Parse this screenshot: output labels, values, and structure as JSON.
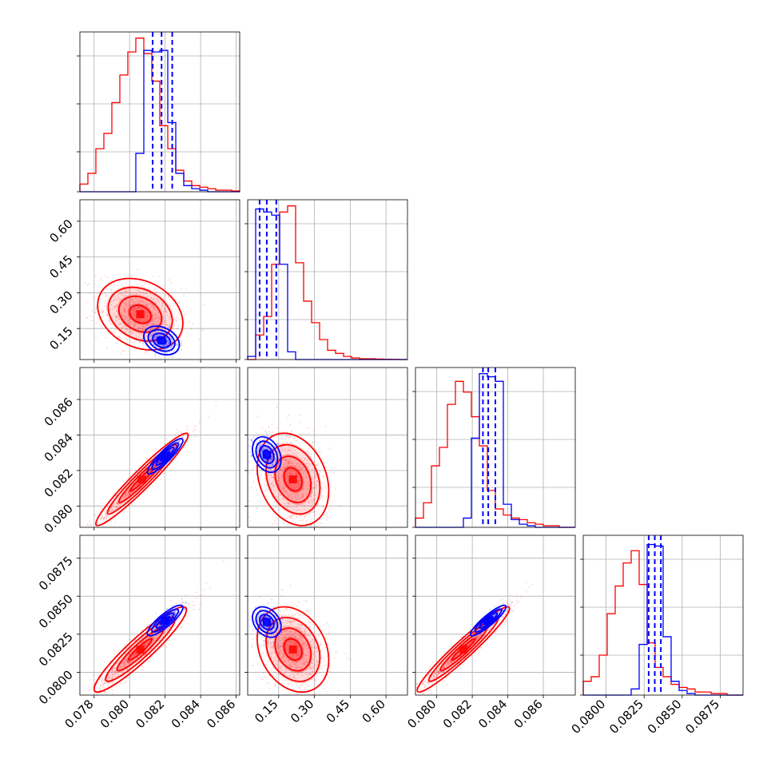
{
  "chart_data": {
    "type": "corner",
    "description_series": [
      {
        "name": "red",
        "color": "#ff0000"
      },
      {
        "name": "blue",
        "color": "#0000ff"
      }
    ],
    "params": [
      {
        "id": "p1",
        "range": [
          0.0772,
          0.0862
        ],
        "ticks": [
          "0.078",
          "0.080",
          "0.082",
          "0.084",
          "0.086"
        ],
        "tick_values": [
          0.078,
          0.08,
          0.082,
          0.084,
          0.086
        ]
      },
      {
        "id": "p2",
        "range": [
          0.02,
          0.69
        ],
        "ticks": [
          "0.15",
          "0.30",
          "0.45",
          "0.60"
        ],
        "tick_values": [
          0.15,
          0.3,
          0.45,
          0.6
        ]
      },
      {
        "id": "p3",
        "range": [
          0.0788,
          0.0878
        ],
        "ticks": [
          "0.080",
          "0.082",
          "0.084",
          "0.086"
        ],
        "tick_values": [
          0.08,
          0.082,
          0.084,
          0.086
        ]
      },
      {
        "id": "p4",
        "range": [
          0.0785,
          0.089
        ],
        "ticks": [
          "0.0800",
          "0.0825",
          "0.0850",
          "0.0875"
        ],
        "tick_values": [
          0.08,
          0.0825,
          0.085,
          0.0875
        ]
      }
    ],
    "histograms": [
      {
        "param": 0,
        "red": [
          0.05,
          0.12,
          0.28,
          0.38,
          0.58,
          0.76,
          0.91,
          1.0,
          0.9,
          0.72,
          0.43,
          0.28,
          0.14,
          0.07,
          0.04,
          0.03,
          0.02,
          0.01,
          0.01,
          0.005
        ],
        "blue": [
          0,
          0,
          0,
          0,
          0,
          0,
          0,
          0.25,
          0.92,
          0.91,
          0.92,
          0.45,
          0.12,
          0.04,
          0.02,
          0.01,
          0,
          0,
          0,
          0
        ],
        "blue_quantiles": [
          0.0813,
          0.0818,
          0.0824
        ]
      },
      {
        "param": 1,
        "red": [
          0.0,
          0.16,
          0.28,
          0.62,
          0.96,
          1.0,
          0.63,
          0.38,
          0.24,
          0.13,
          0.06,
          0.04,
          0.02,
          0.01,
          0.005,
          0.005,
          0.003,
          0.002,
          0.001,
          0.0
        ],
        "blue": [
          0.02,
          0.98,
          0.96,
          0.94,
          0.62,
          0.05,
          0,
          0,
          0,
          0,
          0,
          0,
          0,
          0,
          0,
          0,
          0,
          0,
          0,
          0
        ],
        "blue_quantiles": [
          0.07,
          0.1,
          0.14
        ]
      },
      {
        "param": 2,
        "red": [
          0.06,
          0.16,
          0.4,
          0.52,
          0.8,
          0.95,
          0.88,
          0.72,
          0.53,
          0.24,
          0.12,
          0.08,
          0.06,
          0.05,
          0.03,
          0.02,
          0.01,
          0.01,
          0.0,
          0.0
        ],
        "blue": [
          0,
          0,
          0,
          0,
          0,
          0,
          0.06,
          0.58,
          1.0,
          0.98,
          0.95,
          0.15,
          0.05,
          0.02,
          0.01,
          0,
          0,
          0,
          0,
          0
        ],
        "blue_quantiles": [
          0.0826,
          0.0829,
          0.0833
        ]
      },
      {
        "param": 3,
        "red": [
          0.09,
          0.12,
          0.26,
          0.53,
          0.71,
          0.86,
          0.94,
          0.72,
          0.34,
          0.18,
          0.12,
          0.07,
          0.05,
          0.04,
          0.02,
          0.02,
          0.01,
          0.01,
          0.0,
          0.0
        ],
        "blue": [
          0,
          0,
          0,
          0,
          0,
          0,
          0.04,
          0.33,
          0.98,
          0.97,
          0.38,
          0.09,
          0.03,
          0.01,
          0,
          0,
          0,
          0,
          0,
          0
        ],
        "blue_quantiles": [
          0.0828,
          0.0832,
          0.0836
        ]
      }
    ],
    "pairs": [
      {
        "x": 0,
        "y": 1,
        "red": {
          "mean": [
            0.0806,
            0.21
          ],
          "sd": [
            0.0012,
            0.075
          ],
          "rho": -0.25
        },
        "blue": {
          "mean": [
            0.0818,
            0.1
          ],
          "sd": [
            0.0005,
            0.03
          ],
          "rho": -0.3
        }
      },
      {
        "x": 0,
        "y": 2,
        "red": {
          "mean": [
            0.0807,
            0.0815
          ],
          "sd": [
            0.0013,
            0.0013
          ],
          "rho": 0.96
        },
        "blue": {
          "mean": [
            0.082,
            0.0828
          ],
          "sd": [
            0.0005,
            0.0005
          ],
          "rho": 0.9
        }
      },
      {
        "x": 0,
        "y": 3,
        "red": {
          "mean": [
            0.0806,
            0.0815
          ],
          "sd": [
            0.0013,
            0.0014
          ],
          "rho": 0.93
        },
        "blue": {
          "mean": [
            0.082,
            0.0834
          ],
          "sd": [
            0.0005,
            0.0005
          ],
          "rho": 0.85
        }
      },
      {
        "x": 1,
        "y": 2,
        "red": {
          "mean": [
            0.21,
            0.0815
          ],
          "sd": [
            0.075,
            0.0013
          ],
          "rho": -0.25
        },
        "blue": {
          "mean": [
            0.1,
            0.0829
          ],
          "sd": [
            0.03,
            0.0005
          ],
          "rho": -0.3
        }
      },
      {
        "x": 1,
        "y": 3,
        "red": {
          "mean": [
            0.21,
            0.0815
          ],
          "sd": [
            0.075,
            0.0014
          ],
          "rho": -0.25
        },
        "blue": {
          "mean": [
            0.1,
            0.0833
          ],
          "sd": [
            0.03,
            0.0005
          ],
          "rho": -0.3
        }
      },
      {
        "x": 2,
        "y": 3,
        "red": {
          "mean": [
            0.0815,
            0.0815
          ],
          "sd": [
            0.0013,
            0.0014
          ],
          "rho": 0.96
        },
        "blue": {
          "mean": [
            0.0829,
            0.0834
          ],
          "sd": [
            0.0005,
            0.0005
          ],
          "rho": 0.9
        }
      }
    ],
    "contour_levels_sigma": [
      0.5,
      1.0,
      1.5,
      2.0
    ],
    "grid": true
  }
}
